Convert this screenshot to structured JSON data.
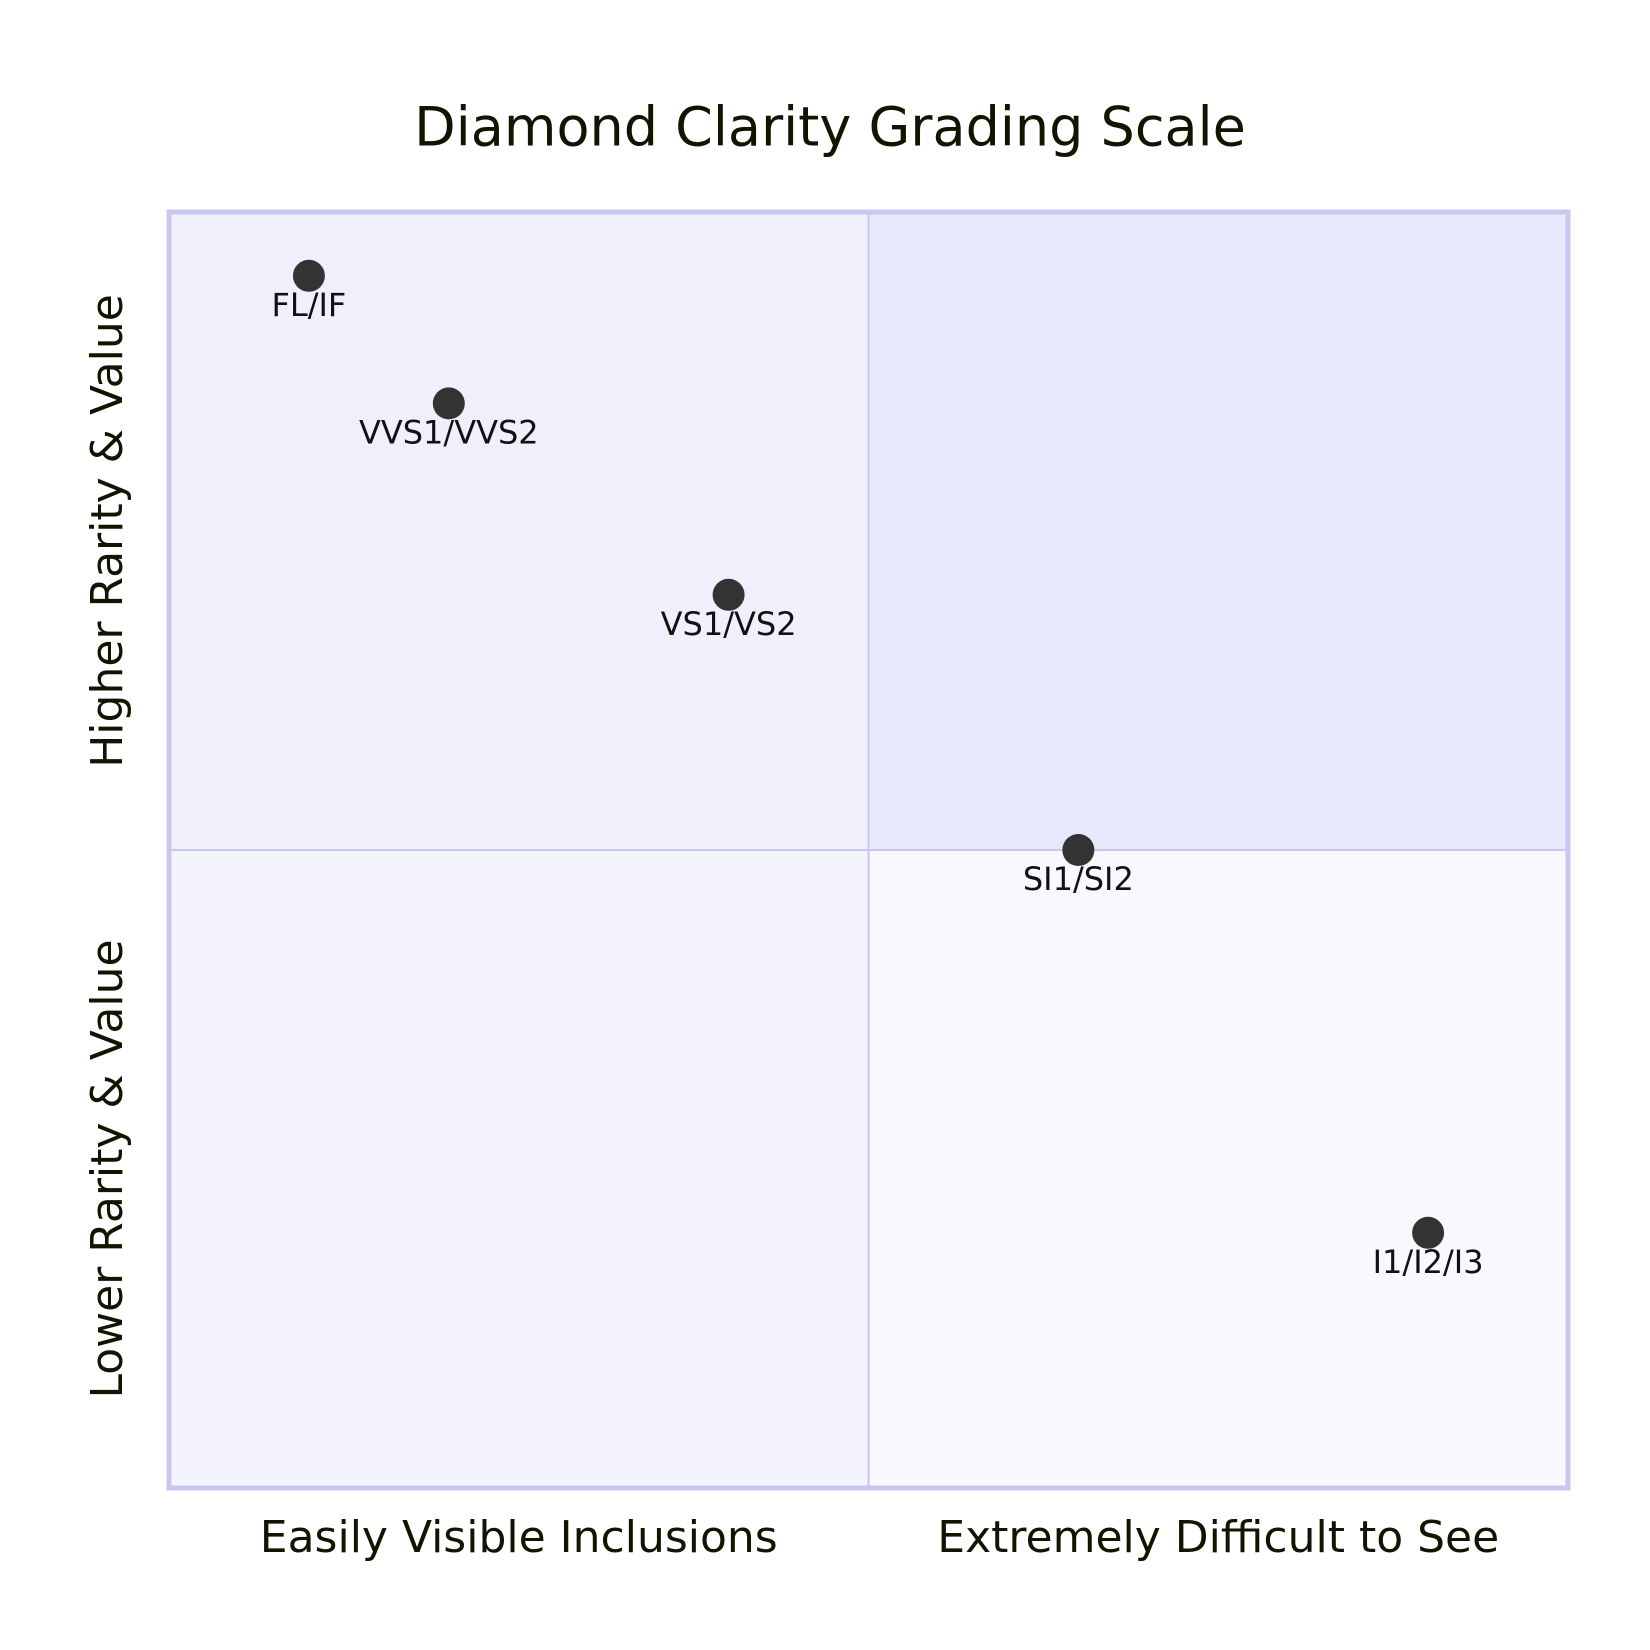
{
  "chart_data": {
    "type": "quadrant",
    "title": "Diamond Clarity Grading Scale",
    "x_axis": {
      "left": "Easily Visible Inclusions",
      "right": "Extremely Difficult to See"
    },
    "y_axis": {
      "bottom": "Lower Rarity & Value",
      "top": "Higher Rarity & Value"
    },
    "xlim": [
      0,
      1
    ],
    "ylim": [
      0,
      1
    ],
    "quadrant_colors": [
      "#e8e8fc",
      "#f0f0fd",
      "#f4f4fd",
      "#f8f8fe"
    ],
    "point_color": "#333333",
    "points": [
      {
        "name": "FL/IF",
        "x": 0.1,
        "y": 0.95
      },
      {
        "name": "VVS1/VVS2",
        "x": 0.2,
        "y": 0.85
      },
      {
        "name": "VS1/VS2",
        "x": 0.4,
        "y": 0.7
      },
      {
        "name": "SI1/SI2",
        "x": 0.65,
        "y": 0.5
      },
      {
        "name": "I1/I2/I3",
        "x": 0.9,
        "y": 0.2
      }
    ]
  }
}
